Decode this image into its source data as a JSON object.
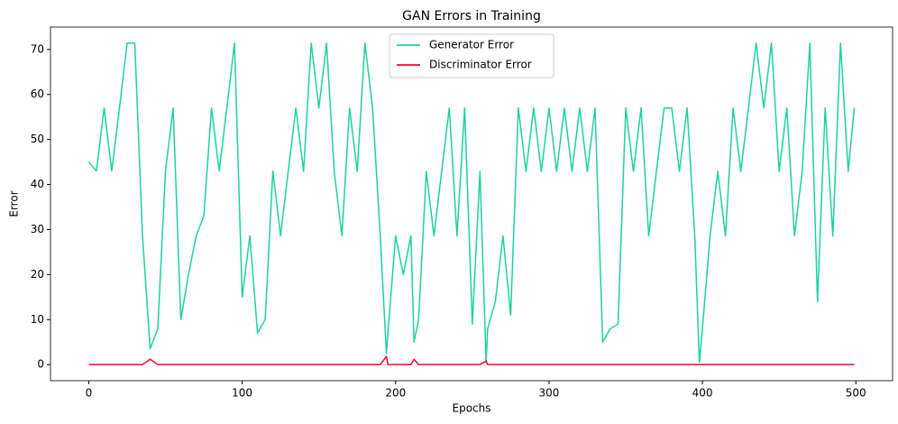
{
  "chart_data": {
    "type": "line",
    "title": "GAN Errors in Training",
    "x_label": "Epochs",
    "y_label": "Error",
    "x": [
      0,
      5,
      10,
      15,
      20,
      25,
      30,
      35,
      40,
      45,
      50,
      55,
      60,
      65,
      70,
      75,
      80,
      85,
      90,
      95,
      100,
      105,
      110,
      115,
      120,
      125,
      130,
      135,
      140,
      145,
      150,
      155,
      160,
      165,
      170,
      175,
      180,
      185,
      190,
      194,
      195,
      200,
      205,
      210,
      212,
      215,
      220,
      225,
      230,
      235,
      240,
      245,
      250,
      255,
      259,
      260,
      265,
      270,
      275,
      280,
      285,
      290,
      295,
      300,
      305,
      310,
      315,
      320,
      325,
      330,
      335,
      340,
      345,
      350,
      355,
      360,
      365,
      370,
      375,
      380,
      385,
      390,
      395,
      398,
      400,
      405,
      410,
      415,
      420,
      425,
      430,
      435,
      440,
      445,
      450,
      455,
      460,
      465,
      470,
      475,
      480,
      485,
      490,
      495,
      499
    ],
    "series": [
      {
        "name": "Generator Error",
        "color": "#1dd1a1",
        "values": [
          45,
          43,
          57,
          43,
          57,
          71.4,
          71.4,
          28.6,
          3.5,
          8,
          43,
          57,
          10,
          20,
          28.6,
          33,
          57,
          43,
          57,
          71.4,
          15,
          28.6,
          7,
          10,
          43,
          28.6,
          42.9,
          57,
          42.9,
          71.4,
          57,
          71.4,
          42.9,
          28.6,
          57,
          42.9,
          71.4,
          57,
          28.6,
          2.5,
          7,
          28.6,
          20,
          28.6,
          5,
          10,
          42.9,
          28.6,
          42.9,
          57,
          28.6,
          57,
          9,
          42.9,
          0.5,
          8,
          14,
          28.6,
          11,
          57,
          42.9,
          57,
          42.9,
          57,
          42.9,
          57,
          42.9,
          57,
          42.9,
          57,
          5,
          8,
          9,
          57,
          42.9,
          57,
          28.6,
          42.9,
          57,
          57,
          42.9,
          57,
          28.6,
          0.5,
          8,
          28.6,
          42.9,
          28.6,
          57,
          42.9,
          57,
          71.4,
          57,
          71.4,
          42.9,
          57,
          28.6,
          42.9,
          71.4,
          14,
          57,
          28.6,
          71.4,
          42.9,
          57
        ]
      },
      {
        "name": "Discriminator Error",
        "color": "#ff0033",
        "values": [
          0,
          0,
          0,
          0,
          0,
          0,
          0,
          0,
          1.2,
          0,
          0,
          0,
          0,
          0,
          0,
          0,
          0,
          0,
          0,
          0,
          0,
          0,
          0,
          0,
          0,
          0,
          0,
          0,
          0,
          0,
          0,
          0,
          0,
          0,
          0,
          0,
          0,
          0,
          0,
          1.8,
          0,
          0,
          0,
          0,
          1.2,
          0,
          0,
          0,
          0,
          0,
          0,
          0,
          0,
          0,
          0.8,
          0,
          0,
          0,
          0,
          0,
          0,
          0,
          0,
          0,
          0,
          0,
          0,
          0,
          0,
          0,
          0,
          0,
          0,
          0,
          0,
          0,
          0,
          0,
          0,
          0,
          0,
          0,
          0,
          0,
          0,
          0,
          0,
          0,
          0,
          0,
          0,
          0,
          0,
          0,
          0,
          0,
          0,
          0,
          0,
          0,
          0,
          0,
          0,
          0,
          0
        ]
      }
    ],
    "xlim": [
      -24.95,
      523.95
    ],
    "ylim": [
      -3.57,
      74.97
    ],
    "xticks": [
      0,
      100,
      200,
      300,
      400,
      500
    ],
    "yticks": [
      0,
      10,
      20,
      30,
      40,
      50,
      60,
      70
    ],
    "legend": "upper center"
  }
}
